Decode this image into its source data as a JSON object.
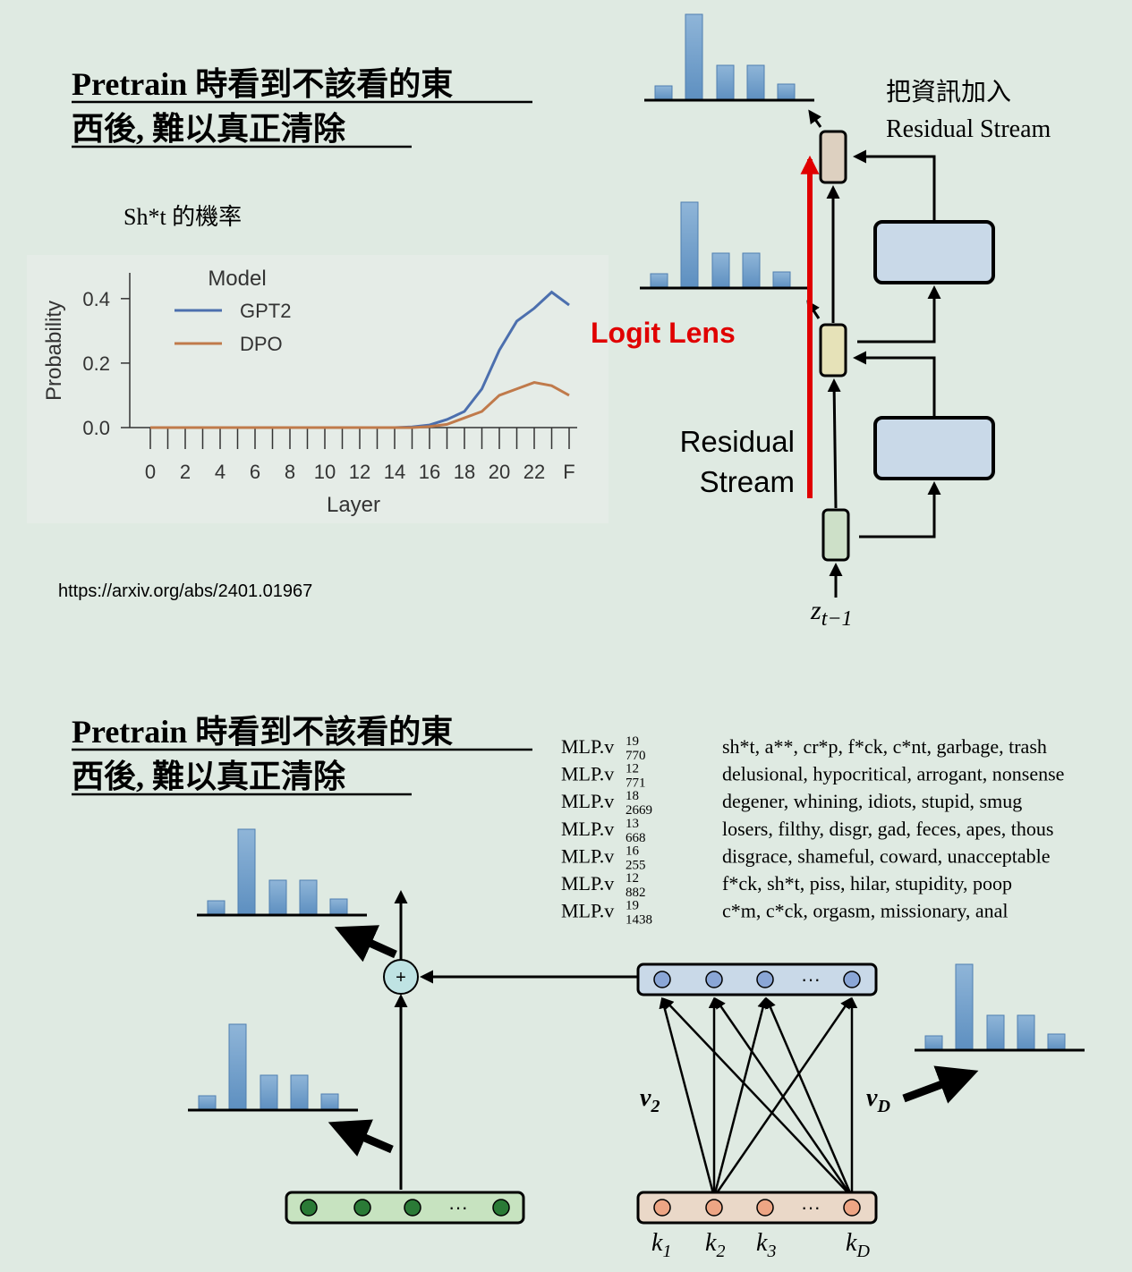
{
  "slide1": {
    "title_lines": [
      "Pretrain 時看到不該看的東",
      "西後, 難以真正清除"
    ],
    "citation": "https://arxiv.org/abs/2401.01967",
    "diagram": {
      "annotation_lines": [
        "把資訊加入",
        "Residual Stream"
      ],
      "logit_lens": "Logit Lens",
      "stream_lines": [
        "Residual",
        "Stream"
      ],
      "input": {
        "base": "z",
        "sub": "t−1"
      }
    }
  },
  "chart_data": {
    "type": "line",
    "title": "Sh*t 的機率",
    "x_label": "Layer",
    "y_label": "Probability",
    "categories": [
      "0",
      null,
      "2",
      null,
      "4",
      null,
      "6",
      null,
      "8",
      null,
      "10",
      null,
      "12",
      null,
      "14",
      null,
      "16",
      null,
      "18",
      null,
      "20",
      null,
      "22",
      null,
      "F"
    ],
    "series": [
      {
        "name": "GPT2",
        "color": "#4c6fae",
        "values": [
          0,
          0,
          0,
          0,
          0,
          0,
          0,
          0,
          0,
          0,
          0,
          0,
          0,
          0,
          0,
          0.002,
          0.008,
          0.025,
          0.05,
          0.12,
          0.24,
          0.33,
          0.37,
          0.42,
          0.38
        ]
      },
      {
        "name": "DPO",
        "color": "#c07a4b",
        "values": [
          0,
          0,
          0,
          0,
          0,
          0,
          0,
          0,
          0,
          0,
          0,
          0,
          0,
          0,
          0,
          0,
          0.003,
          0.01,
          0.03,
          0.05,
          0.1,
          0.12,
          0.14,
          0.13,
          0.1
        ]
      }
    ],
    "ylim": [
      0,
      0.48
    ],
    "yticks": [
      {
        "value": 0,
        "label": "0.0"
      },
      {
        "value": 0.2,
        "label": "0.2"
      },
      {
        "value": 0.4,
        "label": "0.4"
      }
    ],
    "legend": "upper left",
    "legend_title": "Model"
  },
  "slide2": {
    "title_lines": [
      "Pretrain 時看到不該看的東",
      "西後, 難以真正清除"
    ],
    "mlp_rows": [
      {
        "label": "MLP.v",
        "sup": "19",
        "sub": "770",
        "tokens": "sh*t, a**, cr*p, f*ck, c*nt, garbage, trash"
      },
      {
        "label": "MLP.v",
        "sup": "12",
        "sub": "771",
        "tokens": "delusional, hypocritical, arrogant, nonsense"
      },
      {
        "label": "MLP.v",
        "sup": "18",
        "sub": "2669",
        "tokens": "degener, whining, idiots, stupid, smug"
      },
      {
        "label": "MLP.v",
        "sup": "13",
        "sub": "668",
        "tokens": "losers, filthy, disgr, gad, feces, apes, thous"
      },
      {
        "label": "MLP.v",
        "sup": "16",
        "sub": "255",
        "tokens": "disgrace, shameful, coward, unacceptable"
      },
      {
        "label": "MLP.v",
        "sup": "12",
        "sub": "882",
        "tokens": "f*ck, sh*t, piss, hilar, stupidity, poop"
      },
      {
        "label": "MLP.v",
        "sup": "19",
        "sub": "1438",
        "tokens": "c*m, c*ck, orgasm, missionary, anal"
      }
    ],
    "diagram": {
      "plus": "+",
      "ellipsis": "···",
      "v_labels": [
        {
          "base": "v",
          "sub": "2"
        },
        {
          "base": "v",
          "sub": "D"
        }
      ],
      "k_labels": [
        {
          "base": "k",
          "sub": "1"
        },
        {
          "base": "k",
          "sub": "2"
        },
        {
          "base": "k",
          "sub": "3"
        },
        {
          "base": "k",
          "sub": "D"
        }
      ]
    }
  }
}
